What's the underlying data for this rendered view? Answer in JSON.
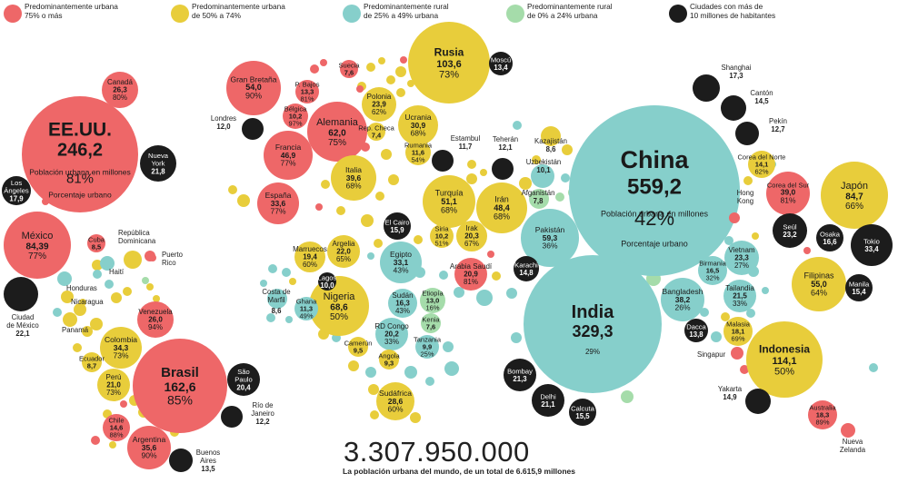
{
  "legend": [
    {
      "label": "Predominantemente urbana\n75% o más",
      "color": "#ee6768"
    },
    {
      "label": "Predominantemente urbana\nde 50% a 74%",
      "color": "#e8cd3b"
    },
    {
      "label": "Predominantemente rural\nde 25% a 49% urbana",
      "color": "#86cfcb"
    },
    {
      "label": "Predominantemente rural\nde 0% a 24% urbana",
      "color": "#a5dcaa"
    },
    {
      "label": "Ciudades con más de\n10 millones de habitantes",
      "color": "#1c1c1c"
    }
  ],
  "footer": {
    "total": "3.307.950.000",
    "caption": "La población urbana del mundo, de un total de 6.615,9 millones"
  },
  "chart_data": {
    "type": "bubble",
    "size_measure": "Población urbana en millones",
    "color_measure": "Porcentaje urbano",
    "countries": [
      {
        "name": "EE.UU.",
        "value": "246,2",
        "pct": "81%",
        "sub1": "Población urbana en millones",
        "sub2": "Porcentaje urbano",
        "cat": "urban75"
      },
      {
        "name": "China",
        "value": "559,2",
        "pct": "42%",
        "sub1": "Población urbana en millones",
        "sub2": "Porcentaje urbano",
        "cat": "rural25"
      },
      {
        "name": "India",
        "value": "329,3",
        "pct": "29%",
        "cat": "rural25"
      },
      {
        "name": "Brasil",
        "value": "162,6",
        "pct": "85%",
        "cat": "urban75"
      },
      {
        "name": "Rusia",
        "value": "103,6",
        "pct": "73%",
        "cat": "urban50"
      },
      {
        "name": "Indonesia",
        "value": "114,1",
        "pct": "50%",
        "cat": "urban50"
      },
      {
        "name": "Japón",
        "value": "84,7",
        "pct": "66%",
        "cat": "urban50"
      },
      {
        "name": "México",
        "value": "84,39",
        "pct": "77%",
        "cat": "urban75"
      },
      {
        "name": "Nigeria",
        "value": "68,6",
        "pct": "50%",
        "cat": "urban50"
      },
      {
        "name": "Alemania",
        "value": "62,0",
        "pct": "75%",
        "cat": "urban75"
      },
      {
        "name": "Gran Bretaña",
        "value": "54,0",
        "pct": "90%",
        "cat": "urban75"
      },
      {
        "name": "Francia",
        "value": "46,9",
        "pct": "77%",
        "cat": "urban75"
      },
      {
        "name": "Turquía",
        "value": "51,1",
        "pct": "68%",
        "cat": "urban50"
      },
      {
        "name": "Irán",
        "value": "48,4",
        "pct": "68%",
        "cat": "urban50"
      },
      {
        "name": "Filipinas",
        "value": "55,0",
        "pct": "64%",
        "cat": "urban50"
      },
      {
        "name": "Italia",
        "value": "39,6",
        "pct": "68%",
        "cat": "urban50"
      },
      {
        "name": "Pakistán",
        "value": "59,3",
        "pct": "36%",
        "cat": "rural25"
      },
      {
        "name": "Bangladesh",
        "value": "38,2",
        "pct": "26%",
        "cat": "rural25"
      },
      {
        "name": "Corea del Sur",
        "value": "39,0",
        "pct": "81%",
        "cat": "urban75"
      },
      {
        "name": "Argentina",
        "value": "35,6",
        "pct": "90%",
        "cat": "urban75"
      },
      {
        "name": "Colombia",
        "value": "34,3",
        "pct": "73%",
        "cat": "urban50"
      },
      {
        "name": "España",
        "value": "33,6",
        "pct": "77%",
        "cat": "urban75"
      },
      {
        "name": "Egipto",
        "value": "33,1",
        "pct": "43%",
        "cat": "rural25"
      },
      {
        "name": "Ucrania",
        "value": "30,9",
        "pct": "68%",
        "cat": "urban50"
      },
      {
        "name": "Sudáfrica",
        "value": "28,6",
        "pct": "60%",
        "cat": "urban50"
      },
      {
        "name": "Canadá",
        "value": "26,3",
        "pct": "80%",
        "cat": "urban75"
      },
      {
        "name": "Venezuela",
        "value": "26,0",
        "pct": "94%",
        "cat": "urban75"
      },
      {
        "name": "Polonia",
        "value": "23,9",
        "pct": "62%",
        "cat": "urban50"
      },
      {
        "name": "Vietnam",
        "value": "23,3",
        "pct": "27%",
        "cat": "rural25"
      },
      {
        "name": "Argelia",
        "value": "22,0",
        "pct": "65%",
        "cat": "urban50"
      },
      {
        "name": "Tailandia",
        "value": "21,5",
        "pct": "33%",
        "cat": "rural25"
      },
      {
        "name": "Perú",
        "value": "21,0",
        "pct": "73%",
        "cat": "urban50"
      },
      {
        "name": "Arabia Saudí",
        "value": "20,9",
        "pct": "81%",
        "cat": "urban75"
      },
      {
        "name": "Irak",
        "value": "20,3",
        "pct": "67%",
        "cat": "urban50"
      },
      {
        "name": "RD Congo",
        "value": "20,2",
        "pct": "33%",
        "cat": "rural25"
      },
      {
        "name": "Marruecos",
        "value": "19,4",
        "pct": "60%",
        "cat": "urban50"
      },
      {
        "name": "Australia",
        "value": "18,3",
        "pct": "89%",
        "cat": "urban75"
      },
      {
        "name": "Malasia",
        "value": "18,1",
        "pct": "69%",
        "cat": "urban50"
      },
      {
        "name": "Birmania",
        "value": "16,5",
        "pct": "32%",
        "cat": "rural25"
      },
      {
        "name": "Sudán",
        "value": "16,3",
        "pct": "43%",
        "cat": "rural25"
      },
      {
        "name": "Chile",
        "value": "14,6",
        "pct": "88%",
        "cat": "urban75"
      },
      {
        "name": "Corea del Norte",
        "value": "14,1",
        "pct": "62%",
        "cat": "urban50"
      },
      {
        "name": "Etiopía",
        "value": "13,0",
        "pct": "16%",
        "cat": "rural0"
      },
      {
        "name": "Bélgica",
        "value": "10,2",
        "pct": "97%",
        "cat": "urban75"
      },
      {
        "name": "P. Bajos",
        "value": "13,3",
        "pct": "81%",
        "cat": "urban75"
      },
      {
        "name": "Ghana",
        "value": "11,3",
        "pct": "49%",
        "cat": "rural25"
      },
      {
        "name": "Rumania",
        "value": "11,6",
        "pct": "54%",
        "cat": "urban50"
      },
      {
        "name": "Uzbekistán",
        "value": "10,1",
        "pct": "37%",
        "cat": "rural25"
      },
      {
        "name": "Siria",
        "value": "10,2",
        "pct": "51%",
        "cat": "urban50"
      },
      {
        "name": "Tanzania",
        "value": "9,9",
        "pct": "25%",
        "cat": "rural25"
      },
      {
        "name": "Camerún",
        "value": "9,5",
        "cat": "urban50"
      },
      {
        "name": "Angola",
        "value": "9,3",
        "cat": "urban50"
      },
      {
        "name": "Ecuador",
        "value": "8,7",
        "cat": "urban50"
      },
      {
        "name": "Kazajistán",
        "value": "8,6",
        "cat": "urban50"
      },
      {
        "name": "Costa de Marfil",
        "value": "8,6",
        "cat": "rural25"
      },
      {
        "name": "Cuba",
        "value": "8,5",
        "cat": "urban75"
      },
      {
        "name": "Afganistán",
        "value": "7,8",
        "cat": "rural0"
      },
      {
        "name": "Kenia",
        "value": "7,6",
        "cat": "rural0"
      },
      {
        "name": "Suecia",
        "value": "7,6",
        "cat": "urban75"
      },
      {
        "name": "Rep. Checa",
        "value": "7,4",
        "cat": "urban50"
      },
      {
        "name": "República Dominicana",
        "cat": "urban50"
      },
      {
        "name": "Haití",
        "cat": "rural25"
      },
      {
        "name": "Puerto Rico",
        "cat": "urban75"
      },
      {
        "name": "Honduras",
        "cat": "rural25"
      },
      {
        "name": "Nicaragua",
        "cat": "urban50"
      },
      {
        "name": "Panamá",
        "cat": "urban50"
      },
      {
        "name": "Hong Kong",
        "cat": "urban75"
      },
      {
        "name": "Singapur",
        "cat": "urban75"
      },
      {
        "name": "Nueva Zelanda",
        "cat": "urban75"
      }
    ],
    "cities": [
      {
        "name": "Tokio",
        "value": "33,4"
      },
      {
        "name": "Seúl",
        "value": "23,2"
      },
      {
        "name": "Ciudad de México",
        "value": "22,1"
      },
      {
        "name": "Nueva York",
        "value": "21,8"
      },
      {
        "name": "Bombay",
        "value": "21,3"
      },
      {
        "name": "Delhi",
        "value": "21,1"
      },
      {
        "name": "São Paulo",
        "value": "20,4"
      },
      {
        "name": "Los Ángeles",
        "value": "17,9"
      },
      {
        "name": "Shanghai",
        "value": "17,3"
      },
      {
        "name": "Osaka",
        "value": "16,6"
      },
      {
        "name": "El Cairo",
        "value": "15,9"
      },
      {
        "name": "Calcuta",
        "value": "15,5"
      },
      {
        "name": "Manila",
        "value": "15,4"
      },
      {
        "name": "Yakarta",
        "value": "14,9"
      },
      {
        "name": "Karachi",
        "value": "14,8"
      },
      {
        "name": "Cantón",
        "value": "14,5"
      },
      {
        "name": "Dacca",
        "value": "13,8"
      },
      {
        "name": "Buenos Aires",
        "value": "13,5"
      },
      {
        "name": "Moscú",
        "value": "13,4"
      },
      {
        "name": "Pekín",
        "value": "12,7"
      },
      {
        "name": "Río de Janeiro",
        "value": "12,2"
      },
      {
        "name": "Teherán",
        "value": "12,1"
      },
      {
        "name": "Londres",
        "value": "12,0"
      },
      {
        "name": "Estambul",
        "value": "11,7"
      },
      {
        "name": "Lagos",
        "value": "10,0"
      }
    ]
  }
}
